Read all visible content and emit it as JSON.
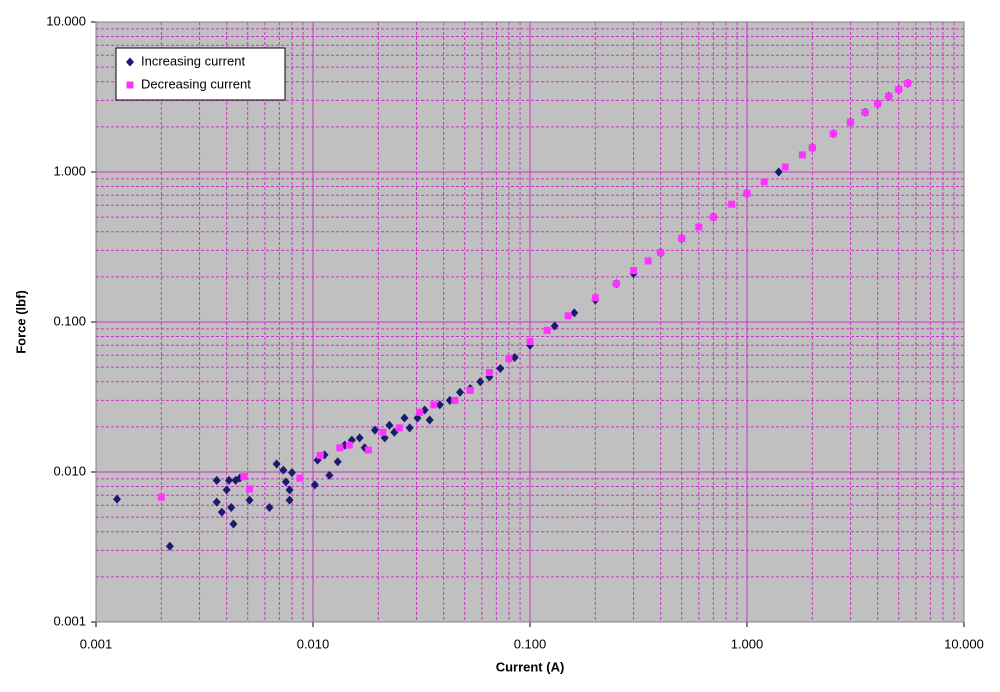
{
  "chart_data": {
    "type": "scatter",
    "x_label": "Current (A)",
    "y_label": "Force (lbf)",
    "xlog": true,
    "ylog": true,
    "xlim": [
      0.001,
      10
    ],
    "ylim": [
      0.001,
      10
    ],
    "xticks": [
      0.001,
      {
        "value": 0.01,
        "label": "0.010"
      },
      {
        "value": 0.1,
        "label": "0.100"
      },
      {
        "value": 1,
        "label": "1.000"
      },
      {
        "value": 10,
        "label": "10.000"
      }
    ],
    "yticks": [
      0.001,
      {
        "value": 0.01,
        "label": "0.010"
      },
      {
        "value": 0.1,
        "label": "0.100"
      },
      {
        "value": 1,
        "label": "1.000"
      },
      {
        "value": 10,
        "label": "10.000"
      }
    ],
    "grid": true,
    "minor_grid": true,
    "grid_color": "#cc33cc",
    "plot_background": "#c0c0c0",
    "legend": "top-left",
    "series": [
      {
        "name": "Increasing current",
        "color": "#1a1a6e",
        "marker": "diamond",
        "x": [
          0.00125,
          0.00219,
          0.0036,
          0.0036,
          0.0038,
          0.004,
          0.0041,
          0.0042,
          0.0043,
          0.0044,
          0.0046,
          0.0051,
          0.0063,
          0.0068,
          0.0073,
          0.0075,
          0.0078,
          0.0078,
          0.008,
          0.0102,
          0.0105,
          0.0113,
          0.0119,
          0.013,
          0.014,
          0.0151,
          0.0164,
          0.0173,
          0.0193,
          0.0214,
          0.0225,
          0.0237,
          0.0264,
          0.0279,
          0.0303,
          0.0327,
          0.0345,
          0.0384,
          0.0427,
          0.0476,
          0.053,
          0.059,
          0.065,
          0.073,
          0.085,
          0.1,
          0.13,
          0.16,
          0.2,
          0.25,
          0.3,
          0.4,
          0.5,
          0.7,
          1,
          1.4,
          2,
          2.5,
          3,
          3.5,
          4,
          4.5,
          5,
          5.5
        ],
        "values": [
          0.0066,
          0.0032,
          0.0088,
          0.0063,
          0.0054,
          0.0076,
          0.0088,
          0.0058,
          0.0045,
          0.0088,
          0.0091,
          0.0065,
          0.0058,
          0.0113,
          0.0103,
          0.0086,
          0.0076,
          0.0065,
          0.0099,
          0.0082,
          0.012,
          0.013,
          0.0095,
          0.0117,
          0.0151,
          0.0163,
          0.0169,
          0.0145,
          0.019,
          0.0169,
          0.0205,
          0.0184,
          0.0229,
          0.0197,
          0.0229,
          0.0259,
          0.0222,
          0.028,
          0.03,
          0.034,
          0.036,
          0.04,
          0.043,
          0.049,
          0.058,
          0.07,
          0.094,
          0.115,
          0.14,
          0.18,
          0.21,
          0.29,
          0.36,
          0.5,
          0.72,
          1.0,
          1.45,
          1.8,
          2.15,
          2.5,
          2.85,
          3.2,
          3.55,
          3.9
        ]
      },
      {
        "name": "Decreasing current",
        "color": "#ff33ff",
        "marker": "square",
        "x": [
          0.002,
          0.0048,
          0.0051,
          0.0087,
          0.0108,
          0.0133,
          0.0147,
          0.018,
          0.021,
          0.025,
          0.031,
          0.036,
          0.045,
          0.053,
          0.065,
          0.08,
          0.1,
          0.12,
          0.15,
          0.2,
          0.25,
          0.3,
          0.35,
          0.4,
          0.5,
          0.6,
          0.7,
          0.85,
          1,
          1.2,
          1.5,
          1.8,
          2,
          2.5,
          3,
          3.5,
          4,
          4.5,
          5,
          5.5
        ],
        "values": [
          0.0068,
          0.0093,
          0.0077,
          0.0091,
          0.0129,
          0.0145,
          0.0151,
          0.014,
          0.0184,
          0.0197,
          0.025,
          0.028,
          0.03,
          0.035,
          0.046,
          0.057,
          0.074,
          0.088,
          0.11,
          0.145,
          0.18,
          0.22,
          0.255,
          0.29,
          0.36,
          0.43,
          0.5,
          0.61,
          0.72,
          0.86,
          1.08,
          1.3,
          1.45,
          1.8,
          2.15,
          2.5,
          2.85,
          3.2,
          3.55,
          3.9
        ]
      }
    ]
  }
}
